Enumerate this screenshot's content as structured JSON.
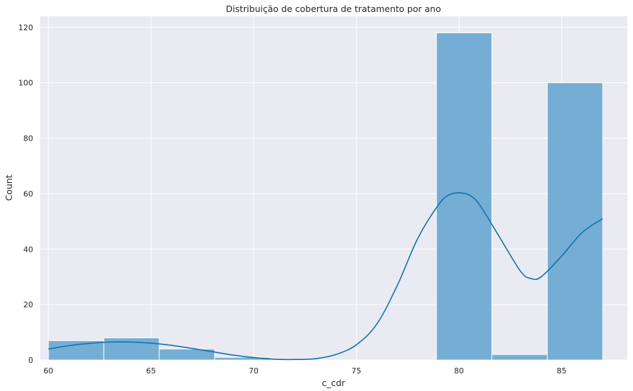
{
  "chart_data": {
    "type": "bar",
    "title": "Distribuição de cobertura de tratamento por ano",
    "xlabel": "c_cdr",
    "ylabel": "Count",
    "xlim": [
      59.6,
      88.2
    ],
    "ylim": [
      0,
      124
    ],
    "xticks": [
      60,
      65,
      70,
      75,
      80,
      85
    ],
    "yticks": [
      0,
      20,
      40,
      60,
      80,
      100,
      120
    ],
    "grid": true,
    "bins": [
      {
        "x0": 60.0,
        "x1": 62.7,
        "count": 7
      },
      {
        "x0": 62.7,
        "x1": 65.4,
        "count": 8
      },
      {
        "x0": 65.4,
        "x1": 68.1,
        "count": 4
      },
      {
        "x0": 68.1,
        "x1": 70.8,
        "count": 1
      },
      {
        "x0": 70.8,
        "x1": 73.5,
        "count": 0
      },
      {
        "x0": 73.5,
        "x1": 76.2,
        "count": 0
      },
      {
        "x0": 76.2,
        "x1": 78.9,
        "count": 0
      },
      {
        "x0": 78.9,
        "x1": 81.6,
        "count": 118
      },
      {
        "x0": 81.6,
        "x1": 84.3,
        "count": 2
      },
      {
        "x0": 84.3,
        "x1": 87.0,
        "count": 100
      }
    ],
    "kde": {
      "x": [
        60,
        61,
        62,
        63,
        64,
        65,
        66,
        67,
        68,
        69,
        70,
        71,
        72,
        73,
        74,
        75,
        76,
        77,
        78,
        79,
        79.5,
        80,
        80.5,
        81,
        82,
        83,
        83.5,
        84,
        85,
        86,
        87
      ],
      "y": [
        4,
        5.2,
        6,
        6.5,
        6.5,
        6.1,
        5.3,
        4.2,
        3,
        1.8,
        0.9,
        0.3,
        0.2,
        0.5,
        2,
        5.5,
        13,
        27,
        44,
        56,
        59.5,
        60.3,
        59.5,
        56,
        44,
        32,
        29.4,
        30,
        37.5,
        46,
        51
      ]
    },
    "colors": {
      "background": "#eaeaf2",
      "grid": "#ffffff",
      "bar_fill": "#75aed4",
      "bar_edge": "#ffffff",
      "kde_line": "#0e72b0"
    }
  }
}
